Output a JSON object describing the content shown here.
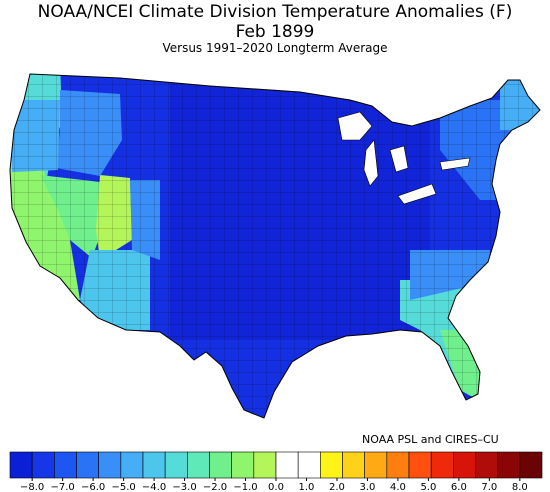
{
  "title": "NOAA/NCEI Climate Division Temperature Anomalies (F)",
  "period": "Feb 1899",
  "subtitle": "Versus 1991–2020 Longterm Average",
  "credit": "NOAA PSL and CIRES–CU",
  "legend": {
    "colors": [
      "#0a1fd6",
      "#1537e8",
      "#1e56f2",
      "#2a72f6",
      "#3a8ef8",
      "#45aef6",
      "#4dc6ee",
      "#55dcd8",
      "#5fe8b8",
      "#70f08c",
      "#8ef56c",
      "#b4f55a",
      "#ffffff",
      "#ffffff",
      "#fff31a",
      "#ffd21a",
      "#ffaa14",
      "#ff7e10",
      "#ff5010",
      "#f0280c",
      "#d8140a",
      "#b00c0a",
      "#8a0606",
      "#6a0404"
    ],
    "ticks": [
      "−8.0",
      "−7.0",
      "−6.0",
      "−5.0",
      "−4.0",
      "−3.0",
      "−2.0",
      "−1.0",
      "0.0",
      "1.0",
      "2.0",
      "3.0",
      "4.0",
      "5.0",
      "6.0",
      "7.0",
      "8.0"
    ]
  }
}
